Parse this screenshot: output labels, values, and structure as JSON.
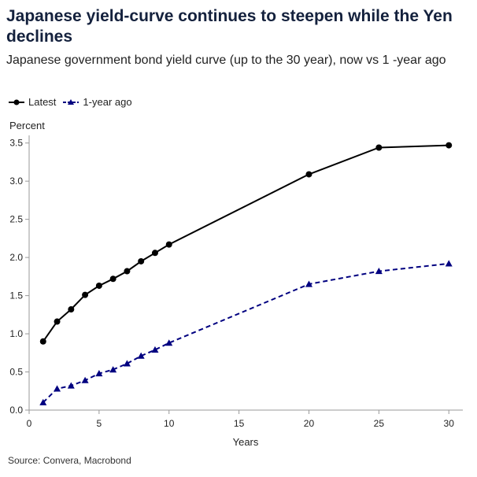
{
  "title": "Japanese yield-curve continues to steepen while the Yen declines",
  "subtitle": "Japanese government bond yield curve (up to the 30 year), now vs 1  -year ago",
  "source": "Source: Convera, Macrobond",
  "chart_data": {
    "type": "line",
    "ylabel": "Percent",
    "xlabel": "Years",
    "xlim": [
      0,
      31
    ],
    "ylim": [
      0,
      3.6
    ],
    "xticks": [
      0,
      5,
      10,
      15,
      20,
      25,
      30
    ],
    "yticks": [
      0.0,
      0.5,
      1.0,
      1.5,
      2.0,
      2.5,
      3.0,
      3.5
    ],
    "xtick_labels": [
      "0",
      "5",
      "10",
      "15",
      "20",
      "25",
      "30"
    ],
    "ytick_labels": [
      "0.0",
      "0.5",
      "1.0",
      "1.5",
      "2.0",
      "2.5",
      "3.0",
      "3.5"
    ],
    "legend_position": "top-left",
    "grid": false,
    "series": [
      {
        "name": "Latest",
        "color": "#000000",
        "marker": "circle",
        "style": "solid",
        "x": [
          1,
          2,
          3,
          4,
          5,
          6,
          7,
          8,
          9,
          10,
          20,
          25,
          30
        ],
        "y": [
          0.9,
          1.16,
          1.32,
          1.51,
          1.63,
          1.72,
          1.82,
          1.95,
          2.06,
          2.17,
          3.09,
          3.44,
          3.47
        ]
      },
      {
        "name": "1-year ago",
        "color": "#000080",
        "marker": "triangle",
        "style": "dashed",
        "x": [
          1,
          2,
          3,
          4,
          5,
          6,
          7,
          8,
          9,
          10,
          20,
          25,
          30
        ],
        "y": [
          0.1,
          0.28,
          0.32,
          0.39,
          0.48,
          0.53,
          0.61,
          0.71,
          0.79,
          0.88,
          1.65,
          1.82,
          1.92
        ]
      }
    ]
  }
}
